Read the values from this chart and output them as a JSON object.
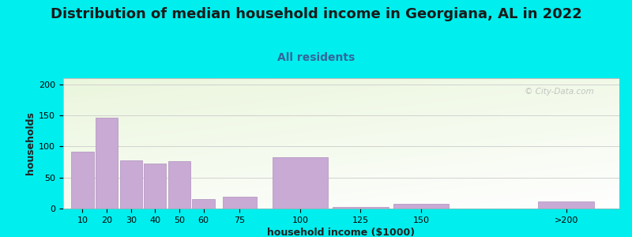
{
  "title": "Distribution of median household income in Georgiana, AL in 2022",
  "subtitle": "All residents",
  "xlabel": "household income ($1000)",
  "ylabel": "households",
  "background_outer": "#00EEEE",
  "bar_color": "#c8aad4",
  "bar_edge_color": "#b090be",
  "categories": [
    "10",
    "20",
    "30",
    "40",
    "50",
    "60",
    "75",
    "100",
    "125",
    "150",
    ">200"
  ],
  "values": [
    92,
    146,
    78,
    73,
    77,
    15,
    19,
    83,
    3,
    8,
    12
  ],
  "bar_positions": [
    10,
    20,
    30,
    40,
    50,
    60,
    75,
    100,
    125,
    150,
    210
  ],
  "bar_widths": [
    10,
    10,
    10,
    10,
    10,
    10,
    15,
    25,
    25,
    25,
    25
  ],
  "ylim": [
    0,
    210
  ],
  "yticks": [
    0,
    50,
    100,
    150,
    200
  ],
  "title_fontsize": 13,
  "subtitle_fontsize": 10,
  "axis_label_fontsize": 9,
  "tick_fontsize": 8,
  "watermark_text": "© City-Data.com"
}
